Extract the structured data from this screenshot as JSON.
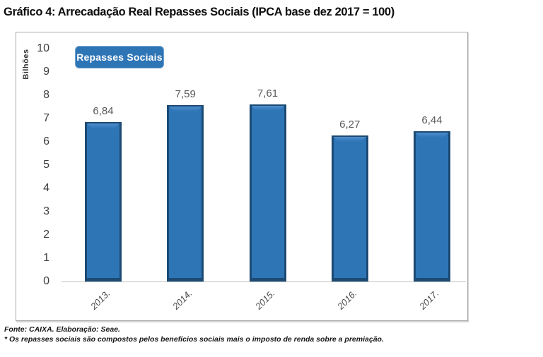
{
  "chart_data": {
    "type": "bar",
    "title": "Gráfico 4: Arrecadação Real Repasses Sociais (IPCA base dez 2017 = 100)",
    "ylabel": "Bilhões",
    "xlabel": "",
    "ylim": [
      0,
      10
    ],
    "yticks": [
      10,
      9,
      8,
      7,
      6,
      5,
      4,
      3,
      2,
      1,
      0
    ],
    "categories": [
      "2013.",
      "2014.",
      "2015.",
      "2016.",
      "2017."
    ],
    "series": [
      {
        "name": "Repasses Sociais",
        "values": [
          6.84,
          7.59,
          7.61,
          6.27,
          6.44
        ]
      }
    ],
    "value_labels": [
      "6,84",
      "7,59",
      "7,61",
      "6,27",
      "6,44"
    ],
    "legend": {
      "label": "Repasses Sociais",
      "position": "top-left"
    },
    "grid": false,
    "colors": {
      "bar_fill": "#2E75B6",
      "bar_border": "#1C4A73",
      "legend_fill": "#2E75B6",
      "legend_text": "#FFFFFF",
      "axis_line": "#BFBFBF",
      "tick_text": "#3D3D3D",
      "value_label_text": "#595959"
    }
  },
  "footer": {
    "source": "Fonte: CAIXA. Elaboração: Seae.",
    "note": "* Os repasses sociais são compostos pelos benefícios sociais mais o imposto de renda sobre a premiação."
  }
}
